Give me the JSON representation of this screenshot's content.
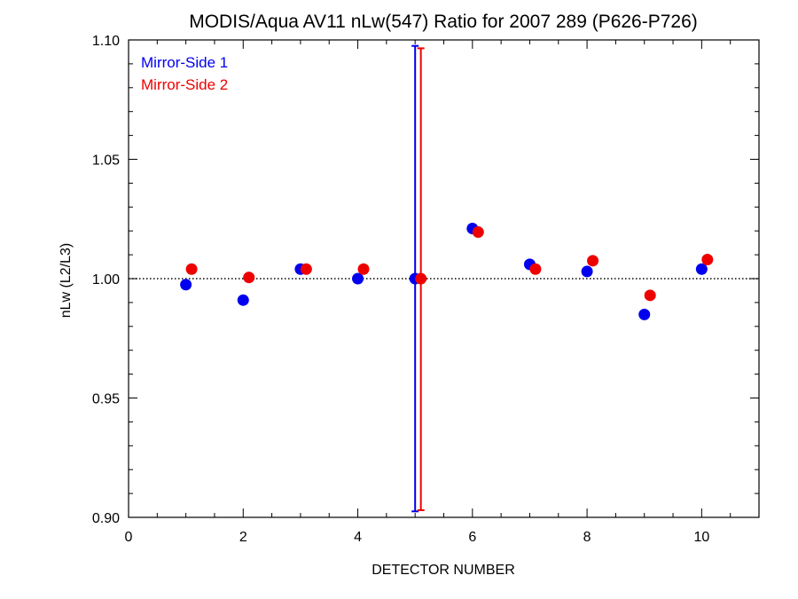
{
  "chart_data": {
    "type": "scatter",
    "title": "MODIS/Aqua AV11 nLw(547) Ratio for 2007 289 (P626-P726)",
    "xlabel": "DETECTOR NUMBER",
    "ylabel": "nLw (L2/L3)",
    "xlim": [
      0,
      11
    ],
    "ylim": [
      0.9,
      1.1
    ],
    "x_ticks": [
      "0",
      "2",
      "4",
      "6",
      "8",
      "10"
    ],
    "y_ticks": [
      "0.90",
      "0.95",
      "1.00",
      "1.05",
      "1.10"
    ],
    "reference_line": 1.0,
    "legend_position": "top-left",
    "grid": false,
    "series": [
      {
        "name": "Mirror-Side 1",
        "color": "#0000ee",
        "points": [
          {
            "x": 1,
            "y": 0.9975
          },
          {
            "x": 2,
            "y": 0.991
          },
          {
            "x": 3,
            "y": 1.004
          },
          {
            "x": 4,
            "y": 1.0
          },
          {
            "x": 5,
            "y": 1.0
          },
          {
            "x": 6,
            "y": 1.021
          },
          {
            "x": 7,
            "y": 1.006
          },
          {
            "x": 8,
            "y": 1.003
          },
          {
            "x": 9,
            "y": 0.985
          },
          {
            "x": 10,
            "y": 1.004
          }
        ],
        "error_bar": {
          "x": 5,
          "low": 0.9025,
          "high": 1.0975
        }
      },
      {
        "name": "Mirror-Side 2",
        "color": "#ee0000",
        "points": [
          {
            "x": 1.1,
            "y": 1.004
          },
          {
            "x": 2.1,
            "y": 1.0005
          },
          {
            "x": 3.1,
            "y": 1.004
          },
          {
            "x": 4.1,
            "y": 1.004
          },
          {
            "x": 5.1,
            "y": 1.0
          },
          {
            "x": 6.1,
            "y": 1.0195
          },
          {
            "x": 7.1,
            "y": 1.004
          },
          {
            "x": 8.1,
            "y": 1.0075
          },
          {
            "x": 9.1,
            "y": 0.993
          },
          {
            "x": 10.1,
            "y": 1.008
          }
        ],
        "error_bar": {
          "x": 5.1,
          "low": 0.903,
          "high": 1.0965
        }
      }
    ]
  }
}
